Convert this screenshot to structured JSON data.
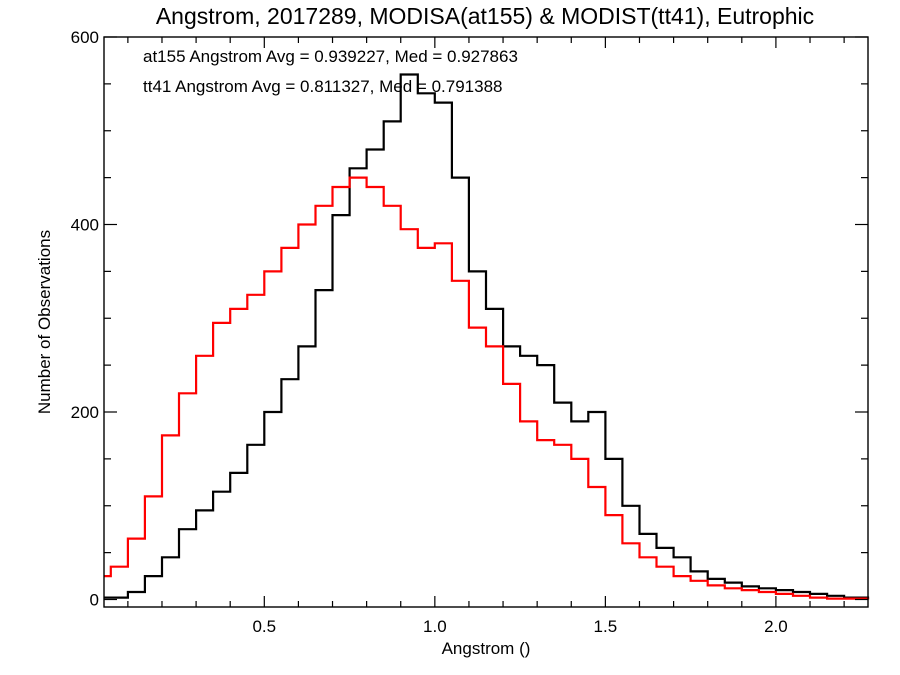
{
  "chart_data": {
    "type": "line",
    "step": true,
    "title": "Angstrom, 2017289, MODISA(at155) & MODIST(tt41), Eutrophic",
    "xlabel": "Angstrom ()",
    "ylabel": "Number of Observations",
    "xlim": [
      0.03,
      2.27
    ],
    "ylim": [
      -8,
      600
    ],
    "xticks": [
      0.5,
      1.0,
      1.5,
      2.0
    ],
    "xtick_labels": [
      "0.5",
      "1.0",
      "1.5",
      "2.0"
    ],
    "yticks": [
      0,
      200,
      400,
      600
    ],
    "ytick_labels": [
      "0",
      "200",
      "400",
      "600"
    ],
    "grid": false,
    "annotations": [
      {
        "text": "at155 Angstrom Avg = 0.939227, Med = 0.927863",
        "color": "#000000"
      },
      {
        "text": "tt41 Angstrom Avg = 0.811327, Med = 0.791388",
        "color": "#ff0000"
      }
    ],
    "series": [
      {
        "color": "#000000",
        "x": [
          0.03,
          0.1,
          0.15,
          0.2,
          0.25,
          0.3,
          0.35,
          0.4,
          0.45,
          0.5,
          0.55,
          0.6,
          0.65,
          0.7,
          0.75,
          0.8,
          0.85,
          0.9,
          0.95,
          1.0,
          1.05,
          1.1,
          1.15,
          1.2,
          1.25,
          1.3,
          1.35,
          1.4,
          1.45,
          1.5,
          1.55,
          1.6,
          1.65,
          1.7,
          1.75,
          1.8,
          1.85,
          1.9,
          1.95,
          2.0,
          2.05,
          2.1,
          2.15,
          2.2,
          2.27
        ],
        "y": [
          2,
          8,
          25,
          45,
          75,
          95,
          115,
          135,
          165,
          200,
          235,
          270,
          330,
          410,
          460,
          480,
          510,
          560,
          540,
          530,
          450,
          350,
          310,
          270,
          260,
          250,
          210,
          190,
          200,
          150,
          100,
          70,
          55,
          45,
          30,
          22,
          18,
          14,
          12,
          10,
          8,
          6,
          4,
          2,
          0
        ]
      },
      {
        "color": "#ff0000",
        "x": [
          0.03,
          0.05,
          0.1,
          0.15,
          0.2,
          0.25,
          0.3,
          0.35,
          0.4,
          0.45,
          0.5,
          0.55,
          0.6,
          0.65,
          0.7,
          0.75,
          0.8,
          0.85,
          0.9,
          0.95,
          1.0,
          1.05,
          1.1,
          1.15,
          1.2,
          1.25,
          1.3,
          1.35,
          1.4,
          1.45,
          1.5,
          1.55,
          1.6,
          1.65,
          1.7,
          1.75,
          1.8,
          1.85,
          1.9,
          1.95,
          2.0,
          2.05,
          2.1,
          2.15,
          2.27
        ],
        "y": [
          25,
          35,
          65,
          110,
          175,
          220,
          260,
          295,
          310,
          325,
          350,
          375,
          400,
          420,
          440,
          450,
          440,
          420,
          395,
          375,
          380,
          340,
          290,
          270,
          230,
          190,
          170,
          165,
          150,
          120,
          90,
          60,
          45,
          35,
          25,
          20,
          15,
          12,
          10,
          8,
          6,
          4,
          2,
          1,
          0
        ]
      }
    ]
  }
}
